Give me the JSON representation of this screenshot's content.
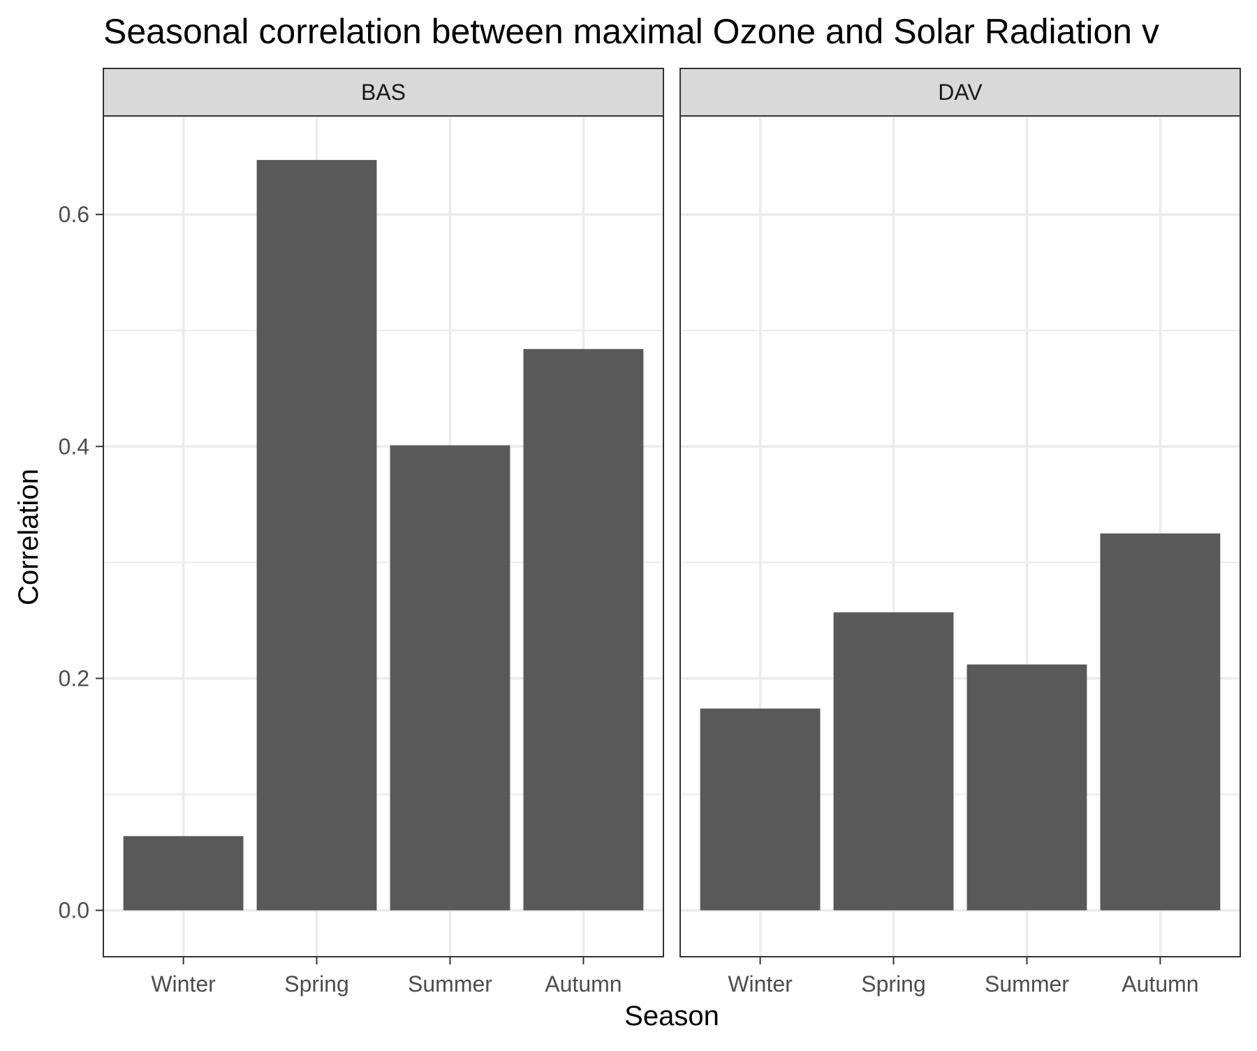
{
  "chart_data": {
    "type": "bar",
    "title": "Seasonal correlation between maximal Ozone and Solar Radiation v",
    "xlabel": "Season",
    "ylabel": "Correlation",
    "ylim": [
      -0.04,
      0.685
    ],
    "y_ticks": [
      "0.0",
      "0.2",
      "0.4",
      "0.6"
    ],
    "y_tick_values": [
      0.0,
      0.2,
      0.4,
      0.6
    ],
    "y_minor_values": [
      0.1,
      0.3,
      0.5
    ],
    "categories": [
      "Winter",
      "Spring",
      "Summer",
      "Autumn"
    ],
    "grid": true,
    "legend": "none",
    "bar_color": "#595959",
    "panels": [
      {
        "label": "BAS",
        "values": [
          0.064,
          0.647,
          0.401,
          0.484
        ]
      },
      {
        "label": "DAV",
        "values": [
          0.174,
          0.257,
          0.212,
          0.325
        ]
      }
    ]
  }
}
